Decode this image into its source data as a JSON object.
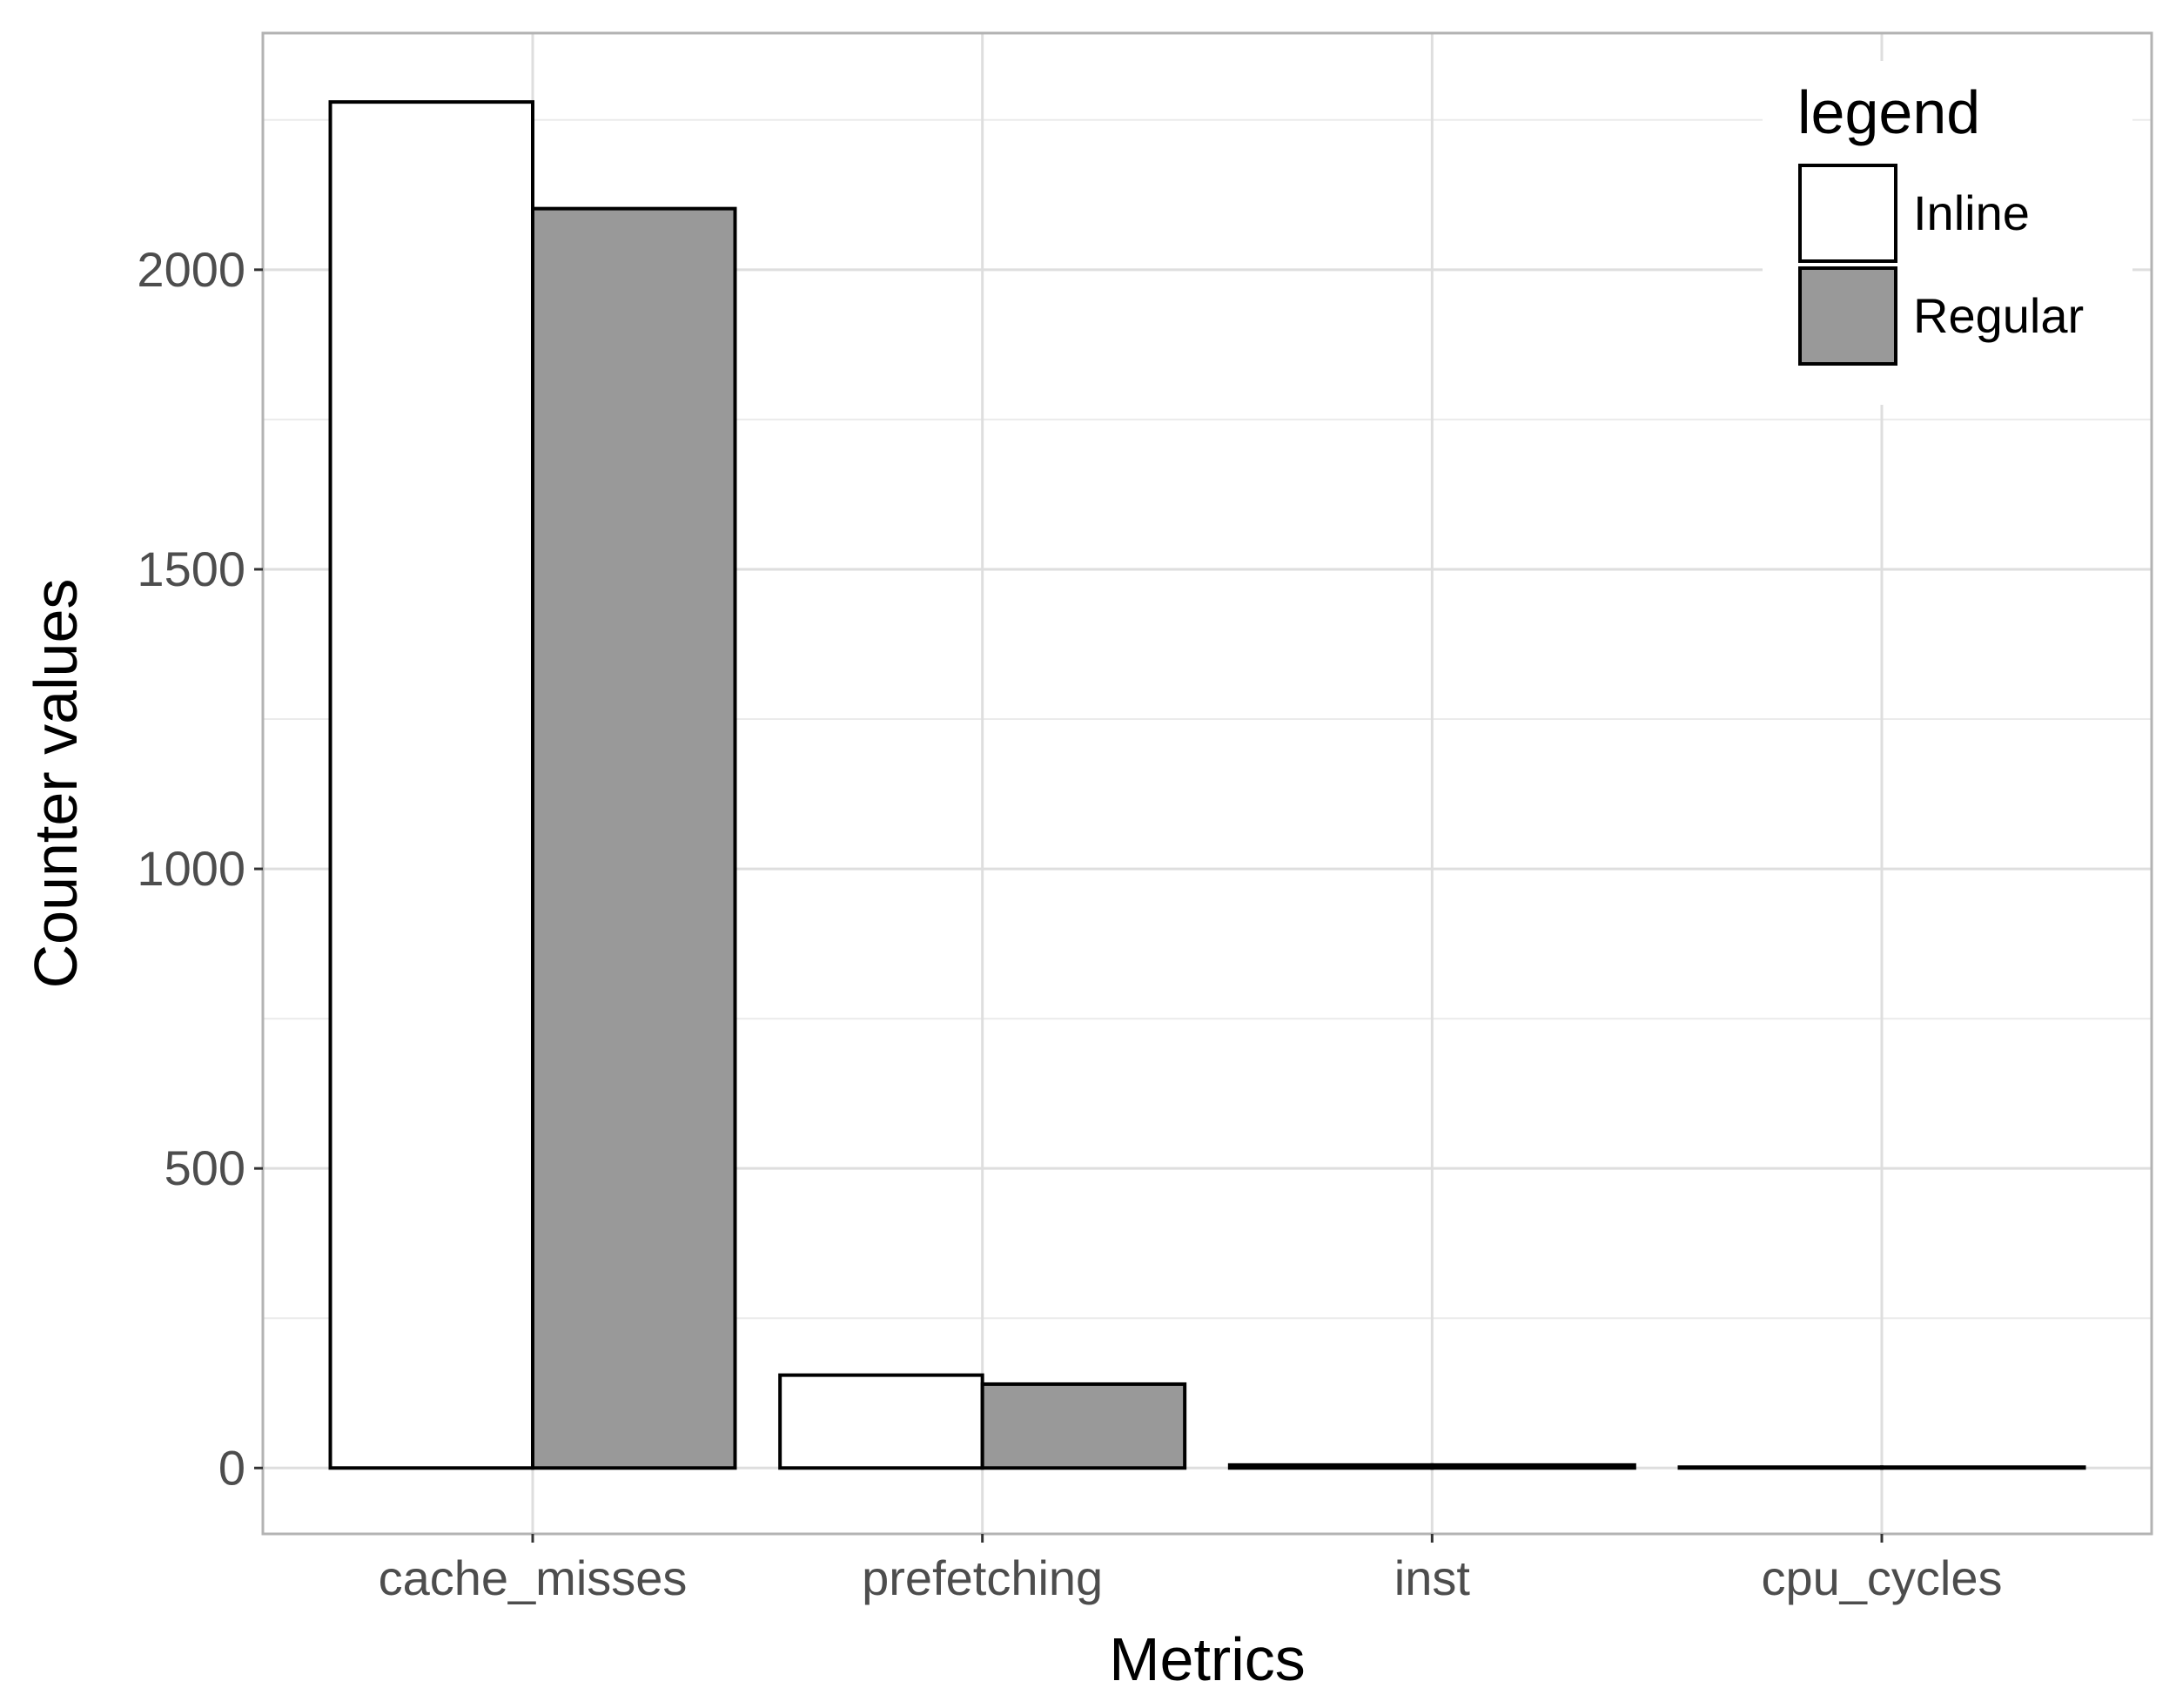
{
  "chart_data": {
    "type": "bar",
    "xlabel": "Metrics",
    "ylabel": "Counter values",
    "categories": [
      "cache_misses",
      "prefetching",
      "inst",
      "cpu_cycles"
    ],
    "series": [
      {
        "name": "Inline",
        "color": "#ffffff",
        "values": [
          2280,
          155,
          5,
          1
        ]
      },
      {
        "name": "Regular",
        "color": "#999999",
        "values": [
          2102,
          140,
          5,
          1
        ]
      }
    ],
    "ylim": [
      -110,
      2395
    ],
    "yticks": [
      0,
      500,
      1000,
      1500,
      2000
    ],
    "legend": {
      "title": "legend",
      "position": "top-right"
    },
    "grid": true,
    "panel_border_color": "#b3b3b3",
    "grid_major_color": "#dedede",
    "grid_minor_color": "#ebebeb",
    "bar_outline_color": "#000000"
  }
}
